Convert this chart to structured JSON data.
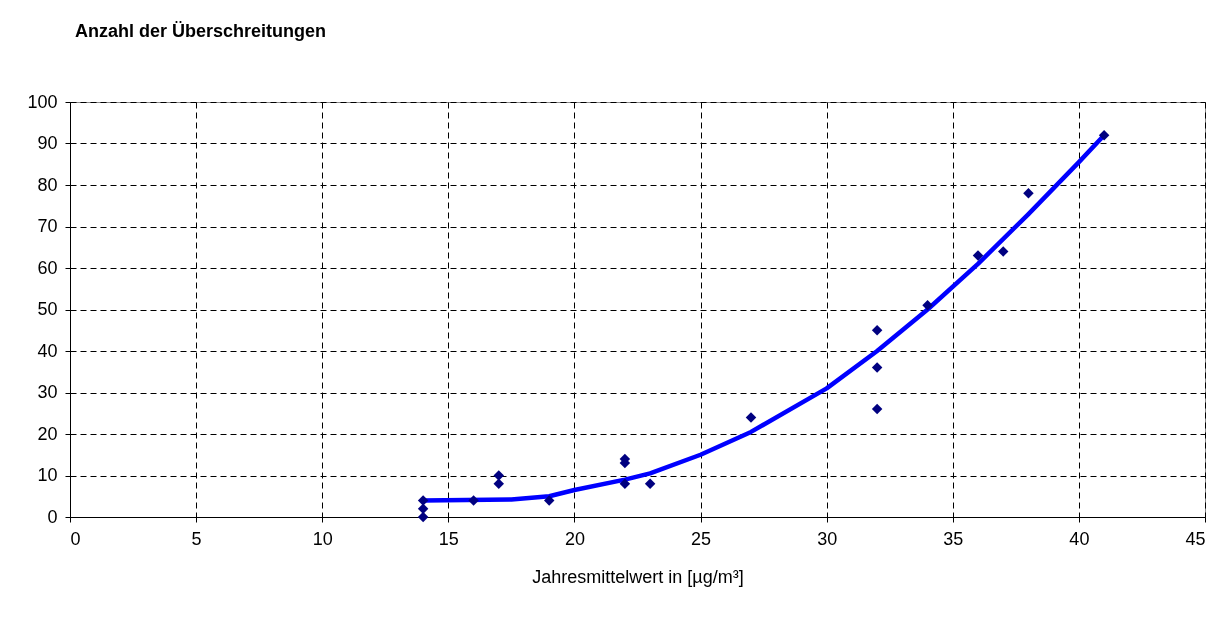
{
  "chart_data": {
    "type": "scatter",
    "title": "Anzahl der Überschreitungen",
    "xlabel": "Jahresmittelwert in [µg/m³]",
    "xlim": [
      0,
      45
    ],
    "xticks": [
      0,
      5,
      10,
      15,
      20,
      25,
      30,
      35,
      40,
      45
    ],
    "ylim": [
      0,
      100
    ],
    "yticks": [
      0,
      10,
      20,
      30,
      40,
      50,
      60,
      70,
      80,
      90,
      100
    ],
    "grid": true,
    "marker": "diamond",
    "series": [
      {
        "color": "#000080",
        "x": [
          14,
          14,
          14,
          16,
          17,
          17,
          19,
          22,
          22,
          22,
          23,
          27,
          32,
          32,
          32,
          34,
          36,
          37,
          38,
          41
        ],
        "values": [
          0,
          2,
          4,
          4,
          8,
          10,
          4,
          8,
          13,
          14,
          8,
          24,
          26,
          36,
          45,
          51,
          63,
          64,
          78,
          92
        ]
      },
      {
        "type": "line",
        "color": "#0000ff",
        "marker": "none",
        "x": [
          14,
          17.5,
          19,
          20,
          22,
          23,
          25,
          27,
          30,
          32,
          34,
          36,
          38,
          40,
          41
        ],
        "values": [
          4,
          4.2,
          5,
          6.5,
          9,
          10.5,
          15,
          20.5,
          31,
          40,
          50,
          61,
          73,
          85.5,
          92
        ]
      }
    ]
  }
}
